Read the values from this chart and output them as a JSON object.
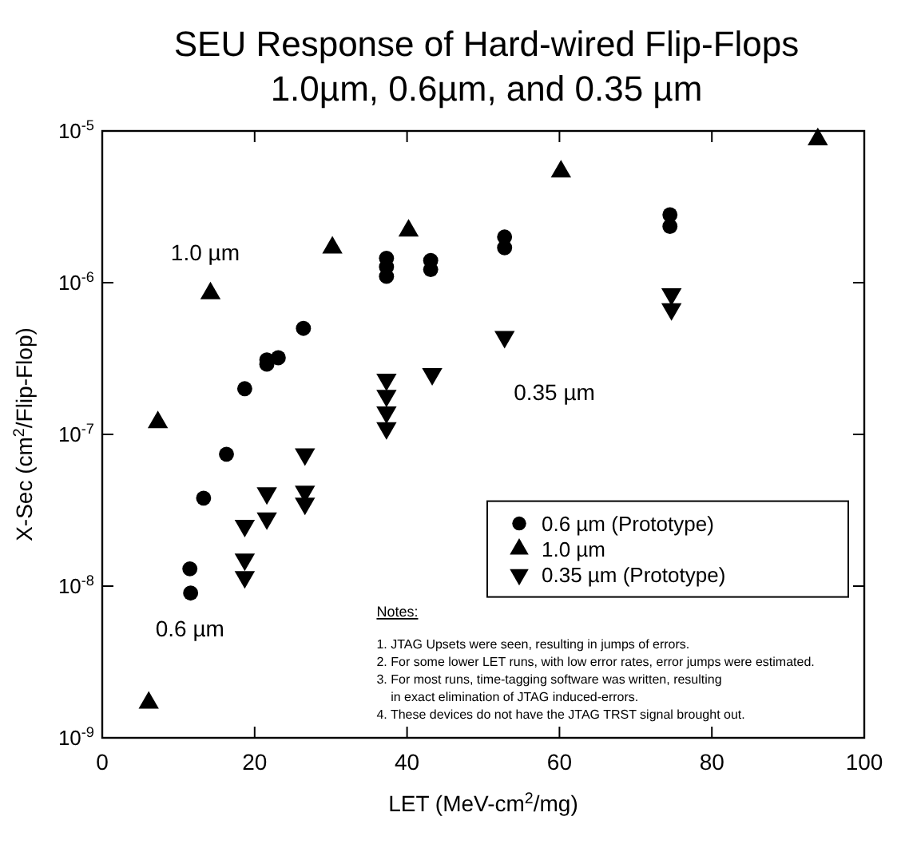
{
  "chart_data": {
    "type": "scatter",
    "title": "SEU Response of Hard-wired Flip-Flops\n1.0µm, 0.6µm, and 0.35 µm",
    "xlabel": "LET (MeV-cm$^{2}$/mg)",
    "ylabel": "X-Sec (cm$^{2}$/Flip-Flop)",
    "log": "y",
    "xlim": [
      0,
      100
    ],
    "xticks": [
      0,
      20,
      40,
      60,
      80,
      100
    ],
    "ylim": [
      1e-09,
      1e-05
    ],
    "yticks": [
      {
        "value": 1e-09,
        "label": "10$^{-9}$"
      },
      {
        "value": 1e-08,
        "label": "10$^{-8}$"
      },
      {
        "value": 1e-07,
        "label": "10$^{-7}$"
      },
      {
        "value": 1e-06,
        "label": "10$^{-6}$"
      },
      {
        "value": 1e-05,
        "label": "10$^{-5}$"
      }
    ],
    "grid": false,
    "legend": "right",
    "series": [
      {
        "name": "0.6 µm (Prototype)",
        "color": "#000000",
        "marker": "circle",
        "x": [
          11.6,
          11.5,
          13.3,
          16.3,
          18.7,
          21.6,
          21.6,
          23.1,
          26.4,
          37.3,
          37.3,
          37.3,
          43.1,
          43.1,
          52.8,
          52.8,
          74.5,
          74.5
        ],
        "values": [
          9e-09,
          1.3e-08,
          3.8e-08,
          7.4e-08,
          2e-07,
          2.9e-07,
          3.1e-07,
          3.2e-07,
          5e-07,
          1.45e-06,
          1.27e-06,
          1.1e-06,
          1.4e-06,
          1.22e-06,
          2e-06,
          1.7e-06,
          2.8e-06,
          2.35e-06
        ]
      },
      {
        "name": "1.0 µm",
        "color": "#000000",
        "marker": "triangle",
        "x": [
          6.1,
          7.3,
          14.2,
          30.2,
          40.2,
          60.2,
          93.9
        ],
        "values": [
          1.7e-09,
          1.2e-07,
          8.5e-07,
          1.7e-06,
          2.2e-06,
          5.4e-06,
          8.8e-06
        ]
      },
      {
        "name": "0.35 µm (Prototype)",
        "color": "#000000",
        "marker": "triangle-down",
        "x": [
          18.7,
          18.7,
          18.7,
          21.6,
          21.6,
          26.6,
          26.6,
          26.6,
          37.3,
          37.3,
          37.3,
          37.3,
          43.3,
          52.8,
          74.7,
          74.7
        ],
        "values": [
          2.5e-08,
          1.5e-08,
          1.15e-08,
          4.1e-08,
          2.8e-08,
          7.4e-08,
          4.2e-08,
          3.5e-08,
          2.3e-07,
          1.8e-07,
          1.4e-07,
          1.1e-07,
          2.5e-07,
          4.4e-07,
          8.4e-07,
          6.7e-07
        ]
      }
    ],
    "annotations": [
      "1.0 µm",
      "0.6 µm",
      "0.35 µm",
      "Notes:",
      "1. JTAG Upsets were seen, resulting in jumps of errors.",
      "2. For some lower LET runs, with low error rates, error jumps were estimated.",
      "3. For most runs, time-tagging software was written, resulting\n    in exact elimination of JTAG induced-errors.",
      "4. These devices do not have the JTAG TRST signal brought out."
    ]
  }
}
